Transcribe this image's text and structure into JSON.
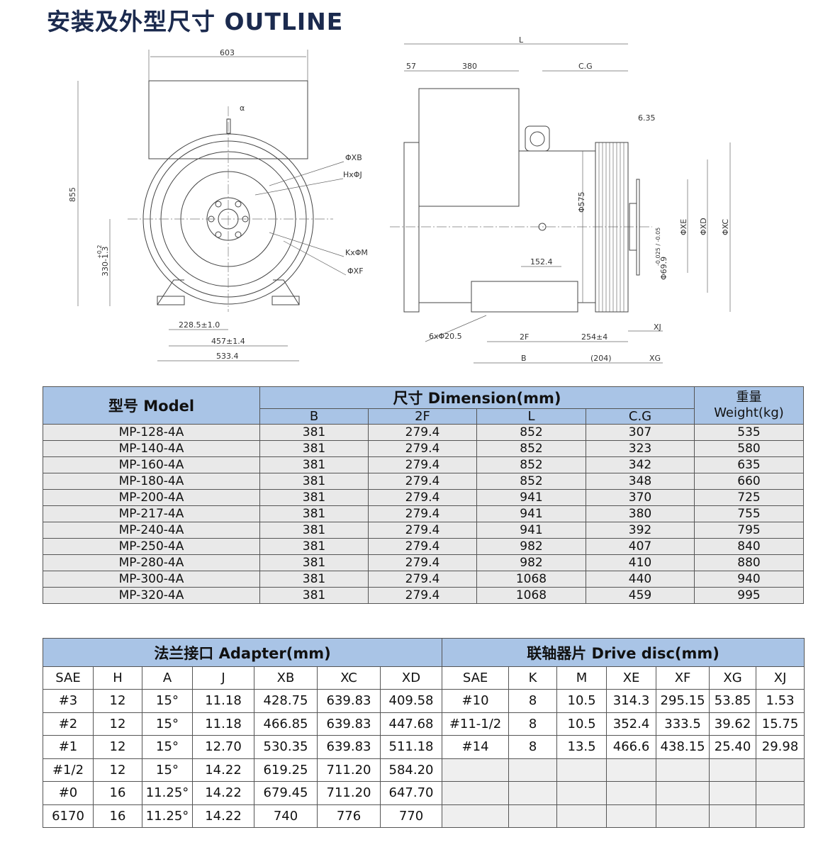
{
  "title": "安装及外型尺寸 OUTLINE",
  "drawing": {
    "front": {
      "w603": "603",
      "h855": "855",
      "alpha": "α",
      "xb": "ΦXB",
      "hj": "HxΦJ",
      "km": "KxΦM",
      "xf": "ΦXF",
      "h330": "330-1.3",
      "h330tol": "+0.2",
      "d228": "228.5±1.0",
      "d457": "457±1.4",
      "d533": "533.4"
    },
    "side": {
      "L": "L",
      "d57": "57",
      "d380": "380",
      "cg": "C.G",
      "d635": "6.35",
      "d575": "Φ575",
      "xe": "ΦXE",
      "xd": "ΦXD",
      "xc": "ΦXC",
      "shaft": "Φ69.9",
      "shaft_tol": "-0.025 / -0.05",
      "d152": "152.4",
      "holes": "6xΦ20.5",
      "f2": "2F",
      "d254": "254±4",
      "B": "B",
      "d204": "(204)",
      "xj": "XJ",
      "xg": "XG"
    }
  },
  "table1": {
    "model_header": "型号  Model",
    "dim_header": "尺寸 Dimension(mm)",
    "weight_header_1": "重量",
    "weight_header_2": "Weight(kg)",
    "columns": [
      "B",
      "2F",
      "L",
      "C.G"
    ],
    "rows": [
      [
        "MP-128-4A",
        "381",
        "279.4",
        "852",
        "307",
        "535"
      ],
      [
        "MP-140-4A",
        "381",
        "279.4",
        "852",
        "323",
        "580"
      ],
      [
        "MP-160-4A",
        "381",
        "279.4",
        "852",
        "342",
        "635"
      ],
      [
        "MP-180-4A",
        "381",
        "279.4",
        "852",
        "348",
        "660"
      ],
      [
        "MP-200-4A",
        "381",
        "279.4",
        "941",
        "370",
        "725"
      ],
      [
        "MP-217-4A",
        "381",
        "279.4",
        "941",
        "380",
        "755"
      ],
      [
        "MP-240-4A",
        "381",
        "279.4",
        "941",
        "392",
        "795"
      ],
      [
        "MP-250-4A",
        "381",
        "279.4",
        "982",
        "407",
        "840"
      ],
      [
        "MP-280-4A",
        "381",
        "279.4",
        "982",
        "410",
        "880"
      ],
      [
        "MP-300-4A",
        "381",
        "279.4",
        "1068",
        "440",
        "940"
      ],
      [
        "MP-320-4A",
        "381",
        "279.4",
        "1068",
        "459",
        "995"
      ]
    ]
  },
  "table2": {
    "adapter_header": "法兰接口 Adapter(mm)",
    "disc_header": "联轴器片 Drive disc(mm)",
    "adapter_columns": [
      "SAE",
      "H",
      "A",
      "J",
      "XB",
      "XC",
      "XD"
    ],
    "disc_columns": [
      "SAE",
      "K",
      "M",
      "XE",
      "XF",
      "XG",
      "XJ"
    ],
    "adapter_rows": [
      [
        "#3",
        "12",
        "15°",
        "11.18",
        "428.75",
        "639.83",
        "409.58"
      ],
      [
        "#2",
        "12",
        "15°",
        "11.18",
        "466.85",
        "639.83",
        "447.68"
      ],
      [
        "#1",
        "12",
        "15°",
        "12.70",
        "530.35",
        "639.83",
        "511.18"
      ],
      [
        "#1/2",
        "12",
        "15°",
        "14.22",
        "619.25",
        "711.20",
        "584.20"
      ],
      [
        "#0",
        "16",
        "11.25°",
        "14.22",
        "679.45",
        "711.20",
        "647.70"
      ],
      [
        "6170",
        "16",
        "11.25°",
        "14.22",
        "740",
        "776",
        "770"
      ]
    ],
    "disc_rows": [
      [
        "#10",
        "8",
        "10.5",
        "314.3",
        "295.15",
        "53.85",
        "1.53"
      ],
      [
        "#11-1/2",
        "8",
        "10.5",
        "352.4",
        "333.5",
        "39.62",
        "15.75"
      ],
      [
        "#14",
        "8",
        "13.5",
        "466.6",
        "438.15",
        "25.40",
        "29.98"
      ]
    ]
  }
}
